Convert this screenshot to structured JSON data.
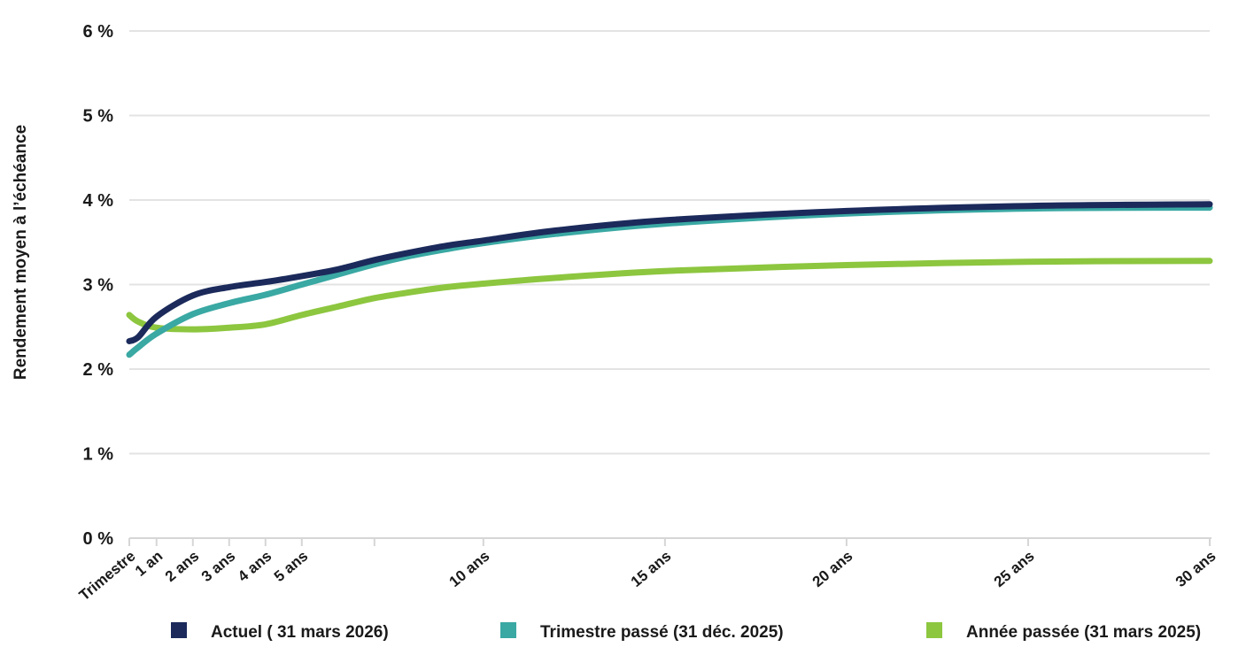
{
  "chart_data": {
    "type": "line",
    "title": "",
    "xlabel": "",
    "ylabel": "Rendement moyen à l’échéance",
    "ylim": [
      0,
      6
    ],
    "xlim": [
      0.25,
      30
    ],
    "grid": "horizontal",
    "legend_position": "bottom",
    "y_ticks": [
      {
        "value": 0,
        "label": "0 %"
      },
      {
        "value": 1,
        "label": "1 %"
      },
      {
        "value": 2,
        "label": "2 %"
      },
      {
        "value": 3,
        "label": "3 %"
      },
      {
        "value": 4,
        "label": "4 %"
      },
      {
        "value": 5,
        "label": "5 %"
      },
      {
        "value": 6,
        "label": "6 %"
      }
    ],
    "x_ticks": [
      {
        "value": 0.25,
        "label": "Trimestre"
      },
      {
        "value": 1,
        "label": "1 an"
      },
      {
        "value": 2,
        "label": "2 ans"
      },
      {
        "value": 3,
        "label": "3 ans"
      },
      {
        "value": 4,
        "label": "4 ans"
      },
      {
        "value": 5,
        "label": "5 ans"
      },
      {
        "value": 7,
        "label": ""
      },
      {
        "value": 10,
        "label": "10 ans"
      },
      {
        "value": 15,
        "label": "15 ans"
      },
      {
        "value": 20,
        "label": "20 ans"
      },
      {
        "value": 25,
        "label": "25 ans"
      },
      {
        "value": 30,
        "label": "30 ans"
      }
    ],
    "series": [
      {
        "name": "Actuel ( 31 mars 2026)",
        "color": "#1b2a5b",
        "x": [
          0.25,
          0.5,
          1,
          2,
          3,
          4,
          5,
          6,
          7,
          8,
          9,
          10,
          12,
          15,
          20,
          25,
          30
        ],
        "y": [
          2.33,
          2.38,
          2.62,
          2.87,
          2.97,
          3.03,
          3.1,
          3.18,
          3.29,
          3.38,
          3.46,
          3.52,
          3.64,
          3.76,
          3.87,
          3.93,
          3.95
        ]
      },
      {
        "name": "Trimestre passé (31 déc. 2025)",
        "color": "#3aa8a3",
        "x": [
          0.25,
          0.5,
          1,
          2,
          3,
          4,
          5,
          6,
          7,
          8,
          9,
          10,
          12,
          15,
          20,
          25,
          30
        ],
        "y": [
          2.17,
          2.26,
          2.42,
          2.65,
          2.78,
          2.88,
          3.0,
          3.12,
          3.24,
          3.34,
          3.42,
          3.49,
          3.6,
          3.72,
          3.84,
          3.9,
          3.91
        ]
      },
      {
        "name": "Année passée (31 mars 2025)",
        "color": "#8dc63f",
        "x": [
          0.25,
          0.5,
          1,
          2,
          3,
          4,
          5,
          6,
          7,
          8,
          9,
          10,
          12,
          15,
          20,
          25,
          30
        ],
        "y": [
          2.64,
          2.56,
          2.49,
          2.47,
          2.49,
          2.53,
          2.64,
          2.74,
          2.84,
          2.91,
          2.97,
          3.01,
          3.08,
          3.16,
          3.23,
          3.27,
          3.28
        ]
      }
    ]
  }
}
